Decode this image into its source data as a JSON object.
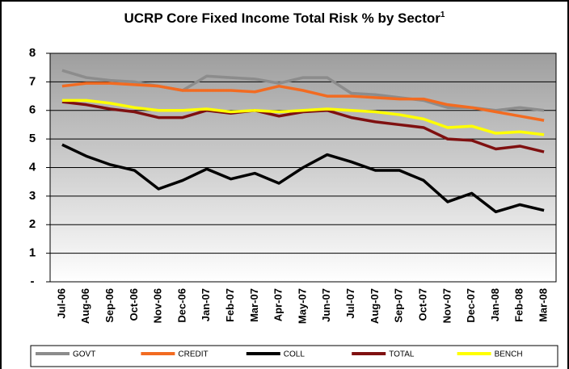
{
  "chart_data": {
    "type": "line",
    "title": "UCRP Core Fixed Income Total Risk % by Sector",
    "title_note": "1",
    "categories": [
      "Jul-06",
      "Aug-06",
      "Sep-06",
      "Oct-06",
      "Nov-06",
      "Dec-06",
      "Jan-07",
      "Feb-07",
      "Mar-07",
      "Apr-07",
      "May-07",
      "Jun-07",
      "Jul-07",
      "Aug-07",
      "Sep-07",
      "Oct-07",
      "Nov-07",
      "Dec-07",
      "Jan-08",
      "Feb-08",
      "Mar-08"
    ],
    "series": [
      {
        "name": "GOVT",
        "color": "#8c8c8c",
        "values": [
          7.4,
          7.15,
          7.05,
          7.0,
          6.85,
          6.7,
          7.2,
          7.15,
          7.1,
          6.95,
          7.15,
          7.15,
          6.6,
          6.55,
          6.45,
          6.35,
          6.1,
          6.1,
          6.0,
          6.1,
          6.0
        ]
      },
      {
        "name": "CREDIT",
        "color": "#f26b21",
        "values": [
          6.85,
          6.95,
          6.95,
          6.9,
          6.85,
          6.7,
          6.7,
          6.7,
          6.65,
          6.85,
          6.7,
          6.5,
          6.5,
          6.45,
          6.4,
          6.4,
          6.2,
          6.1,
          5.95,
          5.8,
          5.65
        ]
      },
      {
        "name": "COLL",
        "color": "#000000",
        "values": [
          4.8,
          4.4,
          4.1,
          3.9,
          3.25,
          3.55,
          3.95,
          3.6,
          3.8,
          3.45,
          4.0,
          4.45,
          4.2,
          3.9,
          3.9,
          3.55,
          2.8,
          3.1,
          2.45,
          2.7,
          2.5
        ]
      },
      {
        "name": "TOTAL",
        "color": "#7f1010",
        "values": [
          6.3,
          6.2,
          6.05,
          5.95,
          5.75,
          5.75,
          6.0,
          5.9,
          6.0,
          5.8,
          5.95,
          6.0,
          5.75,
          5.6,
          5.5,
          5.4,
          5.0,
          4.95,
          4.65,
          4.75,
          4.55
        ]
      },
      {
        "name": "BENCH",
        "color": "#ffff00",
        "values": [
          6.35,
          6.35,
          6.25,
          6.1,
          6.0,
          6.0,
          6.05,
          5.95,
          6.0,
          5.95,
          6.0,
          6.05,
          6.0,
          5.95,
          5.85,
          5.7,
          5.4,
          5.45,
          5.2,
          5.25,
          5.15
        ]
      }
    ],
    "ylim": [
      0,
      8
    ],
    "yticks": [
      {
        "value": 0,
        "label": "-"
      },
      1,
      2,
      3,
      4,
      5,
      6,
      7,
      8
    ],
    "grid": true,
    "legend": "bottom"
  }
}
